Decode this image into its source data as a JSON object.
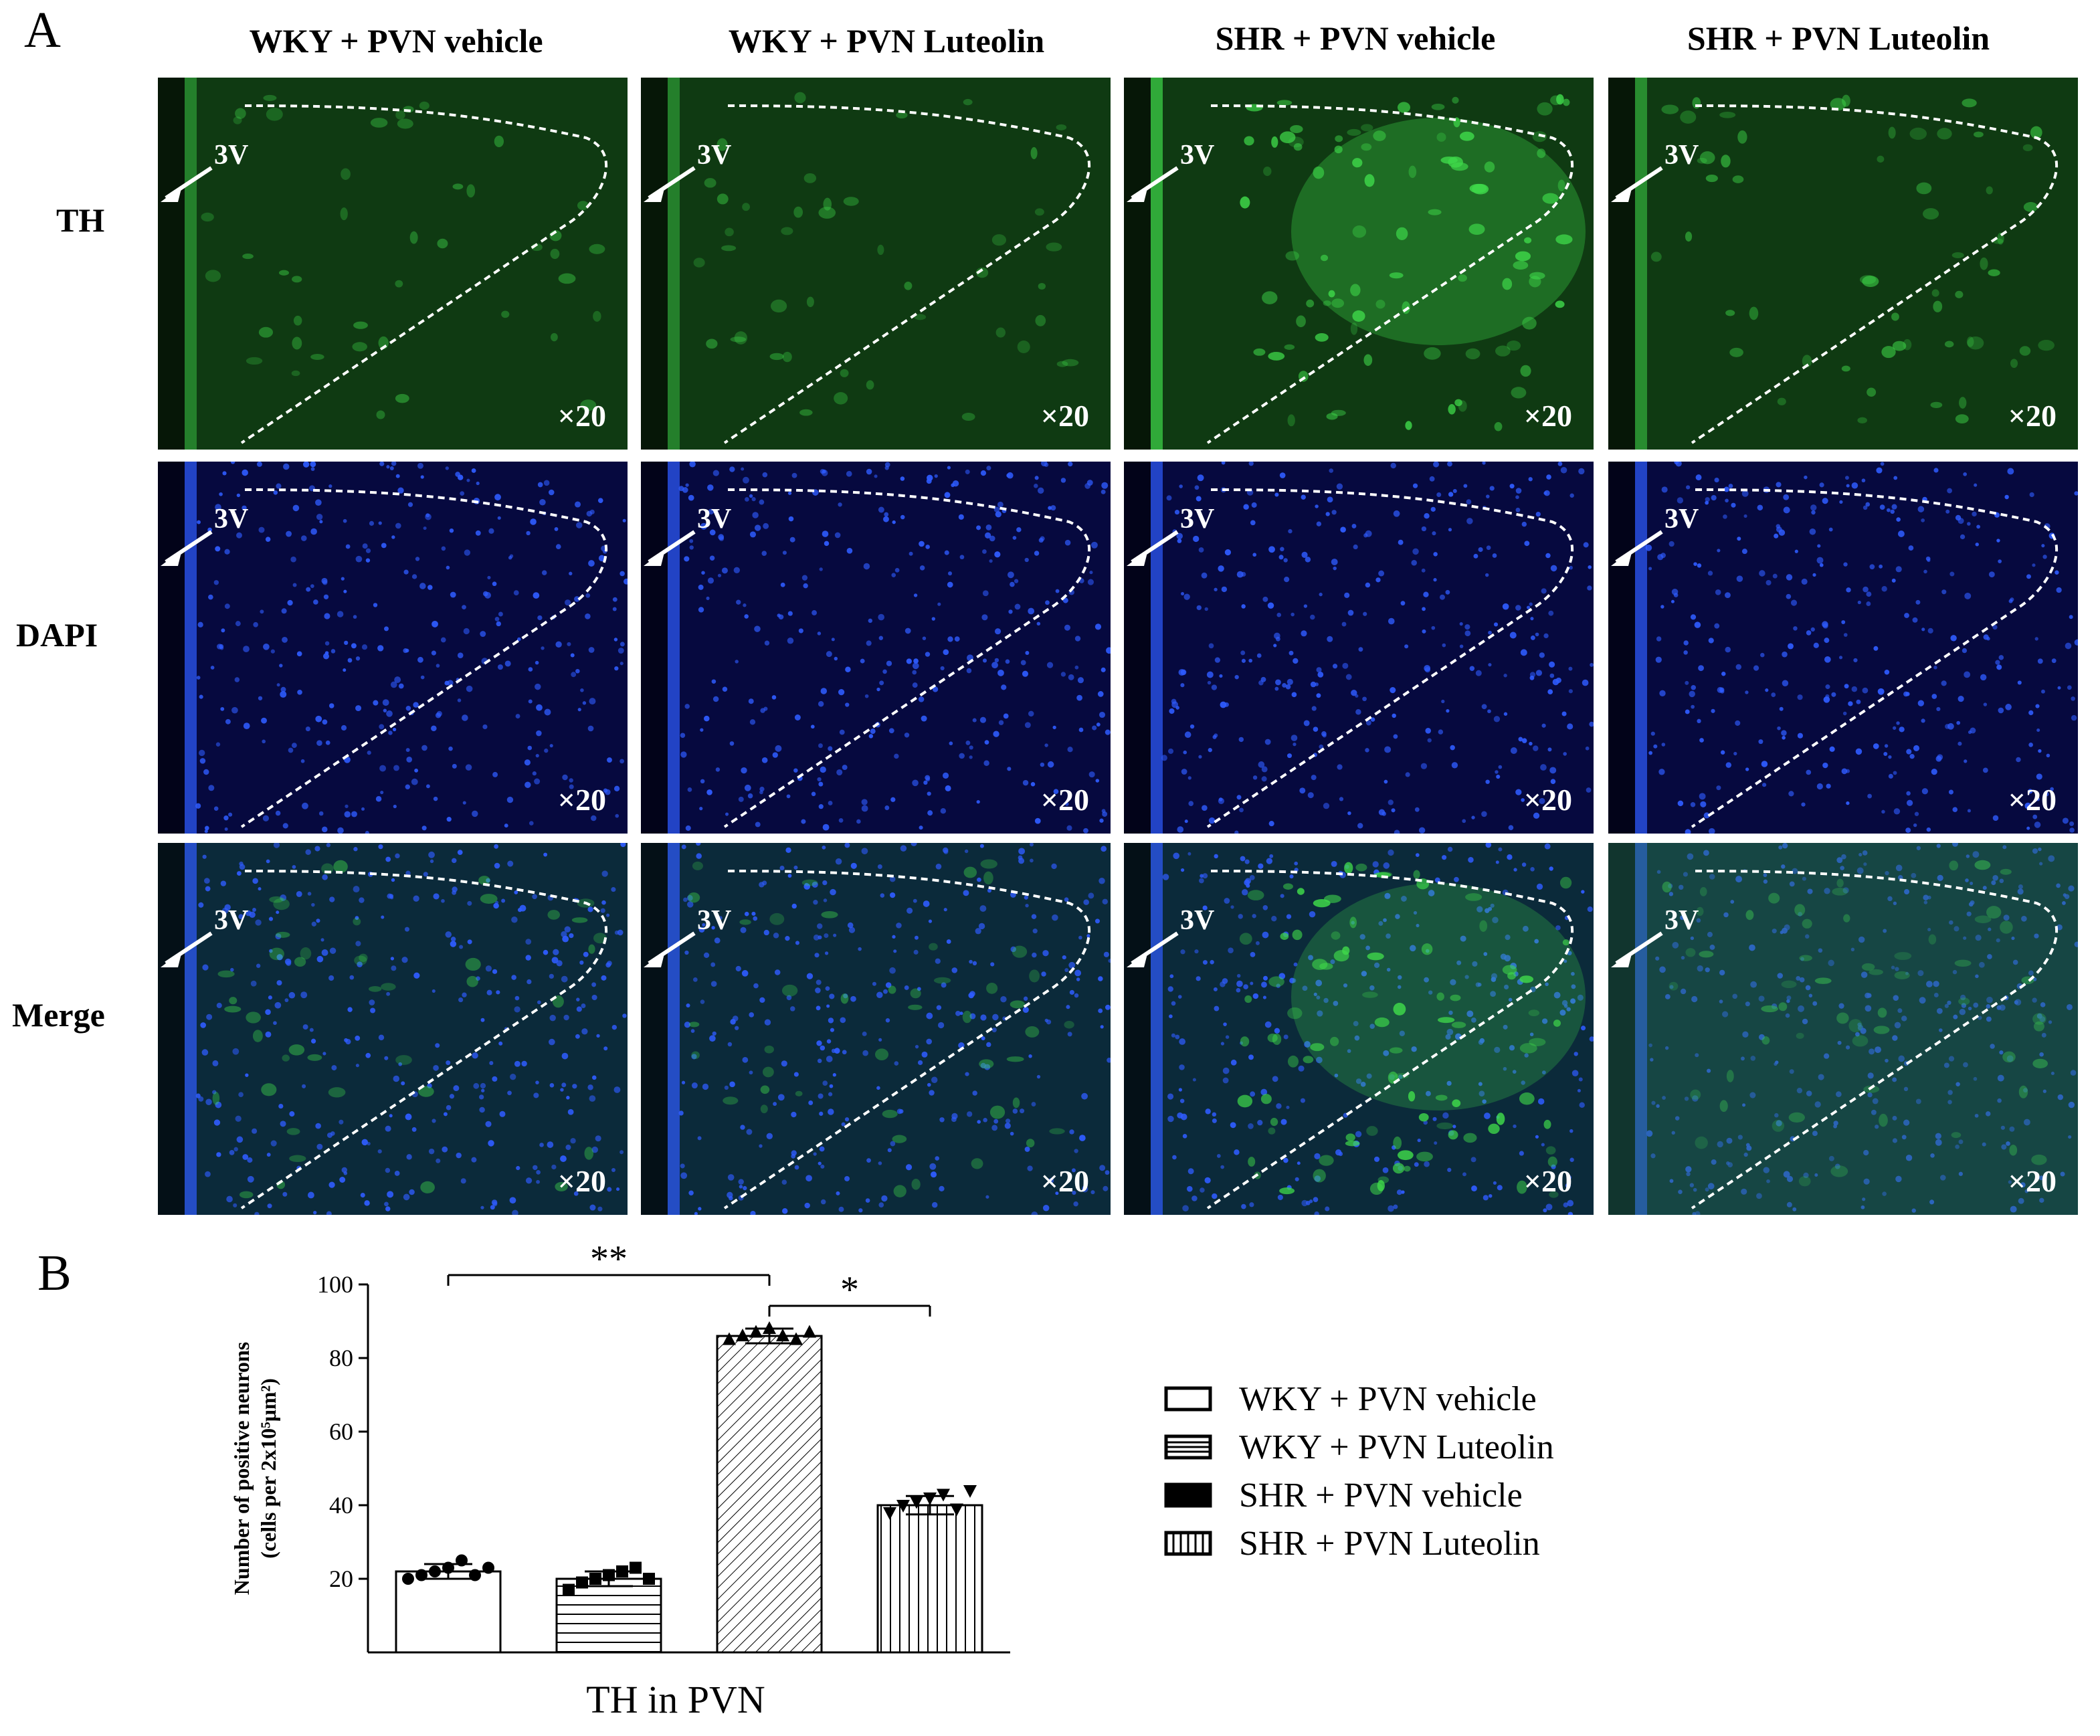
{
  "panel_labels": {
    "a": "A",
    "b": "B"
  },
  "columns": [
    {
      "label": "WKY + PVN vehicle"
    },
    {
      "label": "WKY + PVN Luteolin"
    },
    {
      "label": "SHR + PVN vehicle"
    },
    {
      "label": "SHR + PVN Luteolin"
    }
  ],
  "rows": [
    {
      "label": "TH",
      "tint": "#0f3a12"
    },
    {
      "label": "DAPI",
      "tint": "#06093f"
    },
    {
      "label": "Merge",
      "tint": "#0b2a3a"
    }
  ],
  "micrograph_text": {
    "ventricle_label": "3V",
    "magnification": "×20"
  },
  "colors": {
    "th_green": "#3fd94a",
    "dapi_blue": "#2f5cff",
    "dashed_line": "#ffffff"
  },
  "chart_data": {
    "type": "bar",
    "categories": [
      "WKY + PVN vehicle",
      "WKY + PVN Luteolin",
      "SHR + PVN vehicle",
      "SHR + PVN Luteolin"
    ],
    "values": [
      22,
      20,
      86,
      40
    ],
    "errors": [
      2,
      2,
      2,
      2.5
    ],
    "points": [
      [
        20,
        21,
        22,
        23,
        25,
        21,
        23
      ],
      [
        17,
        19,
        20,
        21,
        22,
        23,
        20
      ],
      [
        85,
        86,
        87,
        88,
        86,
        85,
        87
      ],
      [
        38,
        40,
        41,
        42,
        43,
        39,
        44
      ]
    ],
    "marker_shapes": [
      "circle",
      "square",
      "triangle-up",
      "triangle-down"
    ],
    "bar_patterns": [
      "none",
      "horizontal",
      "diagonal",
      "vertical"
    ],
    "ylabel": "Number of positive neurons",
    "ylabel_units": "(cells per 2x10⁵μm²)",
    "xlabel": "TH in PVN",
    "yticks": [
      20,
      40,
      60,
      80,
      100
    ],
    "ylim": [
      0,
      100
    ],
    "significance": [
      {
        "from": 0,
        "to": 2,
        "label": "**"
      },
      {
        "from": 2,
        "to": 3,
        "label": "*"
      }
    ],
    "legend": [
      {
        "label": "WKY + PVN vehicle",
        "swatch": "empty"
      },
      {
        "label": "WKY + PVN Luteolin",
        "swatch": "horizontal"
      },
      {
        "label": "SHR + PVN vehicle",
        "swatch": "solid"
      },
      {
        "label": "SHR + PVN Luteolin",
        "swatch": "vertical"
      }
    ]
  }
}
